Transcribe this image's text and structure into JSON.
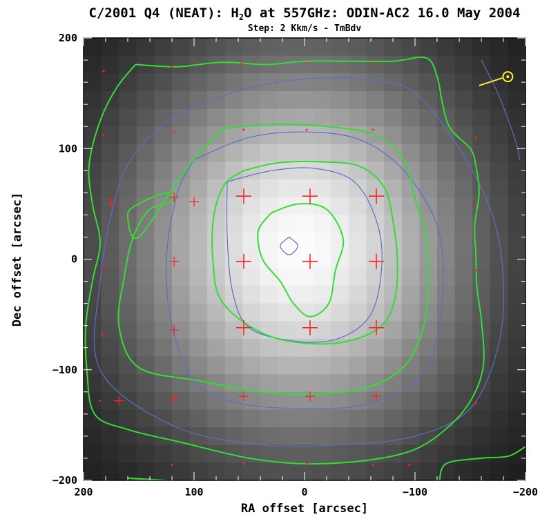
{
  "chart_data": {
    "type": "heatmap",
    "title_parts": {
      "before_sub": "C/2001 Q4 (NEAT): H",
      "sub": "2",
      "after_sub": "O at 557GHz: ODIN-AC2 16.0 May 2004"
    },
    "subtitle": "Step: 2 Kkm/s - TmBdv",
    "xlabel": "RA offset [arcsec]",
    "ylabel": "Dec offset [arcsec]",
    "xlim": [
      200,
      -200
    ],
    "ylim": [
      -200,
      200
    ],
    "x_ticks": [
      200,
      100,
      0,
      -100,
      -200
    ],
    "y_ticks": [
      200,
      100,
      0,
      -100,
      -200
    ],
    "x_tick_labels": [
      "200",
      "100",
      "0",
      "−100",
      "−200"
    ],
    "y_tick_labels": [
      "200",
      "100",
      "0",
      "−100",
      "−200"
    ],
    "grid": false,
    "colormap": "grayscale",
    "peak_position": [
      5,
      10
    ],
    "colors": {
      "green_contour": "#33dd33",
      "blue_contour": "#5a6ec8",
      "pointing_marker": "#ff2222",
      "sun_symbol": "#ffee33"
    },
    "contours": {
      "green": [
        [
          [
            153,
            176
          ],
          [
            115,
            174
          ],
          [
            75,
            178
          ],
          [
            35,
            176
          ],
          [
            0,
            179
          ],
          [
            -40,
            179
          ],
          [
            -80,
            179
          ],
          [
            -110,
            182
          ],
          [
            -120,
            165
          ],
          [
            -125,
            140
          ],
          [
            -132,
            118
          ],
          [
            -150,
            100
          ],
          [
            -155,
            85
          ],
          [
            -158,
            60
          ],
          [
            -154,
            30
          ],
          [
            -155,
            5
          ],
          [
            -156,
            -25
          ],
          [
            -160,
            -55
          ],
          [
            -162,
            -95
          ],
          [
            -152,
            -125
          ],
          [
            -132,
            -150
          ],
          [
            -100,
            -172
          ],
          [
            -55,
            -182
          ],
          [
            0,
            -185
          ],
          [
            50,
            -180
          ],
          [
            110,
            -166
          ],
          [
            160,
            -154
          ],
          [
            190,
            -140
          ],
          [
            197,
            -100
          ],
          [
            198,
            -60
          ],
          [
            192,
            -20
          ],
          [
            185,
            15
          ],
          [
            192,
            50
          ],
          [
            195,
            85
          ],
          [
            185,
            125
          ],
          [
            170,
            155
          ],
          [
            153,
            176
          ]
        ],
        [
          [
            75,
            118
          ],
          [
            30,
            122
          ],
          [
            -20,
            120
          ],
          [
            -65,
            112
          ],
          [
            -90,
            90
          ],
          [
            -100,
            55
          ],
          [
            -110,
            20
          ],
          [
            -112,
            -20
          ],
          [
            -108,
            -60
          ],
          [
            -92,
            -95
          ],
          [
            -60,
            -115
          ],
          [
            -10,
            -122
          ],
          [
            40,
            -120
          ],
          [
            95,
            -110
          ],
          [
            150,
            -98
          ],
          [
            168,
            -60
          ],
          [
            163,
            -15
          ],
          [
            155,
            20
          ],
          [
            140,
            45
          ],
          [
            120,
            52
          ],
          [
            125,
            60
          ],
          [
            150,
            50
          ],
          [
            160,
            40
          ],
          [
            150,
            20
          ],
          [
            110,
            78
          ],
          [
            75,
            118
          ]
        ],
        [
          [
            55,
            80
          ],
          [
            25,
            87
          ],
          [
            -15,
            88
          ],
          [
            -50,
            84
          ],
          [
            -72,
            65
          ],
          [
            -80,
            35
          ],
          [
            -84,
            0
          ],
          [
            -82,
            -35
          ],
          [
            -70,
            -60
          ],
          [
            -40,
            -74
          ],
          [
            0,
            -76
          ],
          [
            40,
            -66
          ],
          [
            75,
            -38
          ],
          [
            83,
            0
          ],
          [
            82,
            40
          ],
          [
            72,
            68
          ],
          [
            55,
            80
          ]
        ],
        [
          [
            30,
            42
          ],
          [
            5,
            50
          ],
          [
            -20,
            45
          ],
          [
            -35,
            18
          ],
          [
            -28,
            -10
          ],
          [
            -22,
            -40
          ],
          [
            -5,
            -52
          ],
          [
            10,
            -40
          ],
          [
            22,
            -20
          ],
          [
            38,
            0
          ],
          [
            42,
            25
          ],
          [
            30,
            42
          ]
        ],
        [
          [
            160,
            -198
          ],
          [
            125,
            -200
          ],
          [
            110,
            -202
          ],
          [
            160,
            -198
          ]
        ],
        [
          [
            -122,
            -202
          ],
          [
            -128,
            -185
          ],
          [
            -160,
            -180
          ],
          [
            -185,
            -178
          ],
          [
            -202,
            -168
          ]
        ]
      ],
      "blue": [
        [
          [
            120,
            128
          ],
          [
            60,
            152
          ],
          [
            0,
            163
          ],
          [
            -60,
            162
          ],
          [
            -100,
            150
          ],
          [
            -140,
            100
          ],
          [
            -170,
            40
          ],
          [
            -180,
            -20
          ],
          [
            -175,
            -80
          ],
          [
            -150,
            -135
          ],
          [
            -100,
            -160
          ],
          [
            -30,
            -168
          ],
          [
            40,
            -168
          ],
          [
            120,
            -150
          ],
          [
            185,
            -100
          ],
          [
            185,
            -20
          ],
          [
            170,
            60
          ],
          [
            150,
            100
          ],
          [
            120,
            128
          ]
        ],
        [
          [
            100,
            90
          ],
          [
            50,
            110
          ],
          [
            0,
            115
          ],
          [
            -50,
            108
          ],
          [
            -90,
            80
          ],
          [
            -120,
            30
          ],
          [
            -125,
            -30
          ],
          [
            -110,
            -100
          ],
          [
            -60,
            -130
          ],
          [
            0,
            -135
          ],
          [
            60,
            -130
          ],
          [
            100,
            -110
          ],
          [
            120,
            -60
          ],
          [
            125,
            0
          ],
          [
            115,
            60
          ],
          [
            100,
            90
          ]
        ],
        [
          [
            70,
            70
          ],
          [
            30,
            80
          ],
          [
            -10,
            82
          ],
          [
            -45,
            70
          ],
          [
            -65,
            35
          ],
          [
            -70,
            -5
          ],
          [
            -60,
            -50
          ],
          [
            -30,
            -72
          ],
          [
            10,
            -74
          ],
          [
            50,
            -62
          ],
          [
            65,
            -30
          ],
          [
            70,
            20
          ],
          [
            70,
            70
          ]
        ],
        [
          [
            14,
            20
          ],
          [
            6,
            12
          ],
          [
            14,
            4
          ],
          [
            22,
            12
          ],
          [
            14,
            20
          ]
        ],
        [
          [
            -160,
            180
          ],
          [
            -175,
            150
          ],
          [
            -190,
            110
          ],
          [
            -195,
            90
          ]
        ]
      ]
    },
    "pointings": {
      "large": [
        [
          55,
          57
        ],
        [
          -5,
          57
        ],
        [
          -65,
          57
        ],
        [
          55,
          -2
        ],
        [
          -5,
          -2
        ],
        [
          -65,
          -2
        ],
        [
          55,
          -62
        ],
        [
          -5,
          -62
        ],
        [
          -65,
          -62
        ]
      ],
      "medium": [
        [
          118,
          56
        ],
        [
          100,
          52
        ],
        [
          175,
          51
        ],
        [
          118,
          -2
        ],
        [
          118,
          -64
        ],
        [
          118,
          -126
        ],
        [
          55,
          -124
        ],
        [
          -5,
          -124
        ],
        [
          -65,
          -124
        ],
        [
          168,
          -128
        ]
      ],
      "small": [
        [
          120,
          174
        ],
        [
          57,
          177
        ],
        [
          -2,
          177
        ],
        [
          -62,
          177
        ],
        [
          118,
          115
        ],
        [
          55,
          117
        ],
        [
          -2,
          117
        ],
        [
          -62,
          117
        ],
        [
          182,
          112
        ],
        [
          182,
          170
        ],
        [
          180,
          -8
        ],
        [
          183,
          -68
        ],
        [
          185,
          -128
        ],
        [
          120,
          -186
        ],
        [
          55,
          -185
        ],
        [
          -2,
          -185
        ],
        [
          -62,
          -186
        ],
        [
          -95,
          -186
        ],
        [
          -155,
          110
        ],
        [
          -155,
          50
        ],
        [
          -155,
          -10
        ],
        [
          -155,
          -130
        ]
      ]
    },
    "sun_marker": {
      "position": [
        -184,
        165
      ],
      "vector_end": [
        -158,
        157
      ]
    }
  }
}
